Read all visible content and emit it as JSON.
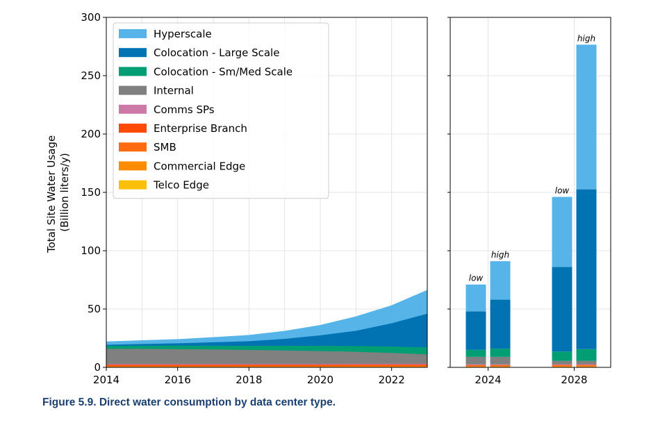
{
  "figure": {
    "caption": "Figure 5.9.  Direct water consumption by data center type."
  },
  "chart_data": [
    {
      "type": "area",
      "ylabel_line1": "Total Site Water Usage",
      "ylabel_line2": "(Billion liters/y)",
      "xlim": [
        2014,
        2023
      ],
      "ylim": [
        0,
        300
      ],
      "x_ticks": [
        "2014",
        "2016",
        "2018",
        "2020",
        "2022"
      ],
      "y_ticks": [
        "0",
        "50",
        "100",
        "150",
        "200",
        "250",
        "300"
      ],
      "grid": true,
      "legend_position": "top-left",
      "x": [
        2014,
        2015,
        2016,
        2017,
        2018,
        2019,
        2020,
        2021,
        2022,
        2023
      ],
      "series": [
        {
          "name": "Telco Edge",
          "color": "#fcc00b",
          "values": [
            0.2,
            0.2,
            0.2,
            0.2,
            0.3,
            0.3,
            0.3,
            0.3,
            0.3,
            0.3
          ]
        },
        {
          "name": "Commercial Edge",
          "color": "#fb8c00",
          "values": [
            0.6,
            0.6,
            0.6,
            0.6,
            0.6,
            0.6,
            0.6,
            0.7,
            0.7,
            0.7
          ]
        },
        {
          "name": "SMB",
          "color": "#ff6b10",
          "values": [
            0.8,
            0.8,
            0.8,
            0.8,
            0.8,
            0.8,
            0.8,
            0.8,
            0.8,
            0.8
          ]
        },
        {
          "name": "Enterprise Branch",
          "color": "#ff4a08",
          "values": [
            0.8,
            0.8,
            0.8,
            0.8,
            0.8,
            0.8,
            0.8,
            0.8,
            0.8,
            0.8
          ]
        },
        {
          "name": "Comms SPs",
          "color": "#cc79a7",
          "values": [
            0.6,
            0.6,
            0.6,
            0.6,
            0.6,
            0.6,
            0.6,
            0.6,
            0.6,
            0.6
          ]
        },
        {
          "name": "Internal",
          "color": "#808080",
          "values": [
            13.0,
            13.0,
            12.8,
            12.5,
            12.0,
            11.5,
            11.0,
            10.3,
            9.3,
            8.0
          ]
        },
        {
          "name": "Colocation - Sm/Med Scale",
          "color": "#029e73",
          "values": [
            2.5,
            2.7,
            3.0,
            3.2,
            3.5,
            4.0,
            4.5,
            5.0,
            5.5,
            6.0
          ]
        },
        {
          "name": "Colocation - Large Scale",
          "color": "#0173b2",
          "values": [
            1.0,
            1.5,
            2.0,
            3.0,
            4.0,
            6.0,
            9.0,
            13.0,
            20.0,
            29.0
          ]
        },
        {
          "name": "Hyperscale",
          "color": "#56b4e9",
          "values": [
            2.5,
            2.8,
            3.2,
            4.0,
            5.0,
            6.5,
            8.5,
            12.0,
            15.0,
            20.0
          ]
        }
      ]
    },
    {
      "type": "bar",
      "stacked": true,
      "ylim": [
        0,
        300
      ],
      "x_ticks": [
        "2024",
        "2028"
      ],
      "categories": [
        "2024 low",
        "2024 high",
        "2028 low",
        "2028 high"
      ],
      "bar_labels": [
        "low",
        "high",
        "low",
        "high"
      ],
      "series": [
        {
          "name": "Telco Edge",
          "values": [
            0.3,
            0.3,
            0.3,
            0.3
          ]
        },
        {
          "name": "Commercial Edge",
          "values": [
            0.7,
            0.7,
            0.8,
            0.8
          ]
        },
        {
          "name": "SMB",
          "values": [
            0.5,
            0.5,
            0.5,
            0.5
          ]
        },
        {
          "name": "Enterprise Branch",
          "values": [
            0.5,
            0.5,
            0.5,
            0.5
          ]
        },
        {
          "name": "Comms SPs",
          "values": [
            0.5,
            0.5,
            0.5,
            0.5
          ]
        },
        {
          "name": "Internal",
          "values": [
            6.5,
            6.5,
            3.0,
            3.0
          ]
        },
        {
          "name": "Colocation - Sm/Med Scale",
          "values": [
            6.0,
            7.0,
            8.0,
            10.0
          ]
        },
        {
          "name": "Colocation - Large Scale",
          "values": [
            33.0,
            42.0,
            72.5,
            137.0
          ]
        },
        {
          "name": "Hyperscale",
          "values": [
            23.0,
            33.0,
            60.0,
            124.0
          ]
        }
      ]
    }
  ]
}
